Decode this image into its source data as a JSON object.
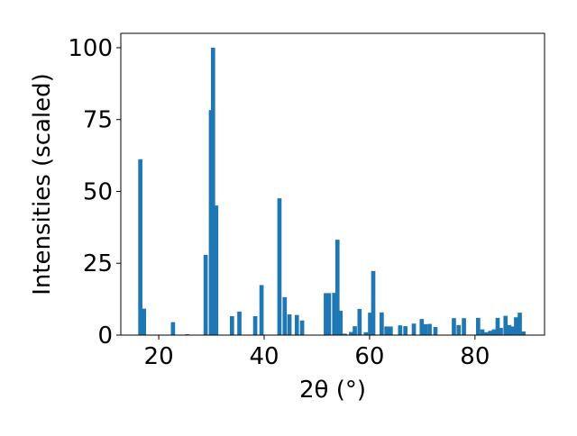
{
  "chart_data": {
    "type": "bar",
    "title": "",
    "xlabel": "2θ (°)",
    "ylabel": "Intensities (scaled)",
    "xlim": [
      12.8,
      93.2
    ],
    "ylim": [
      0,
      105
    ],
    "xticks": [
      20,
      40,
      60,
      80
    ],
    "yticks": [
      0,
      25,
      50,
      75,
      100
    ],
    "grid": false,
    "bar_color": "#1f77b4",
    "bar_width": 0.8,
    "x": [
      16.5,
      17.2,
      22.7,
      25.4,
      28.9,
      29.9,
      30.3,
      30.9,
      33.9,
      35.3,
      38.3,
      39.5,
      42.9,
      43.9,
      44.8,
      46.2,
      47.2,
      51.7,
      52.3,
      53.3,
      53.9,
      54.5,
      55.3,
      56.5,
      57.2,
      58.1,
      59.3,
      60.1,
      60.7,
      62.3,
      63.2,
      64.0,
      65.8,
      66.8,
      68.4,
      69.9,
      70.6,
      71.4,
      72.5,
      76.0,
      76.9,
      77.9,
      80.6,
      81.4,
      82.1,
      82.9,
      83.6,
      84.3,
      84.9,
      85.8,
      86.5,
      87.2,
      87.8,
      88.5,
      89.2
    ],
    "values": [
      61.2,
      9.2,
      4.5,
      0.3,
      27.9,
      78.3,
      100,
      45.1,
      6.6,
      8.2,
      6.6,
      17.4,
      47.6,
      13.2,
      7.2,
      7.0,
      5.1,
      14.6,
      14.6,
      14.7,
      33.2,
      8.5,
      0.5,
      1.1,
      3.1,
      9.1,
      1.0,
      7.8,
      22.3,
      7.9,
      3.0,
      3.0,
      3.4,
      3.1,
      4.0,
      5.6,
      3.8,
      3.9,
      2.8,
      5.9,
      3.5,
      5.9,
      6.0,
      2.0,
      1.0,
      1.5,
      2.0,
      6.0,
      2.5,
      6.7,
      3.5,
      3.0,
      6.2,
      7.8,
      1.3
    ]
  }
}
